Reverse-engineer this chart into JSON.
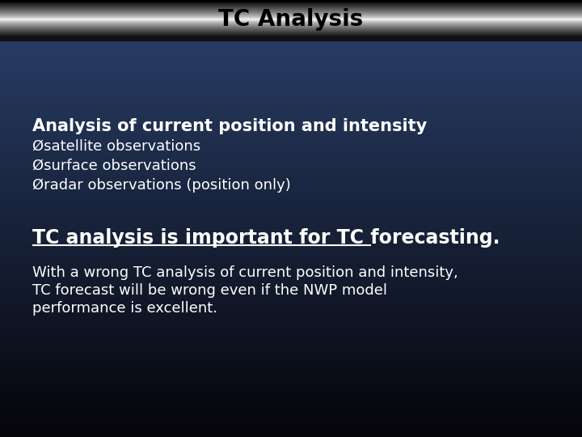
{
  "title": "TC Analysis",
  "title_color": "#000000",
  "bold_line1": "Analysis of current position and intensity",
  "bullet1": "Øsatellite observations",
  "bullet2": "Øsurface observations",
  "bullet3": "Øradar observations (position only)",
  "emphasis_line": "TC analysis is important for TC forecasting.",
  "para_line1": "With a wrong TC analysis of current position and intensity,",
  "para_line2": "TC forecast will be wrong even if the NWP model",
  "para_line3": "performance is excellent.",
  "text_color": "#ffffff",
  "title_fontsize": 20,
  "bold_fontsize": 15,
  "bullet_fontsize": 13,
  "emphasis_fontsize": 17,
  "para_fontsize": 13,
  "title_bar_height": 48,
  "fig_width": 7.2,
  "fig_height": 5.4,
  "dpi": 100
}
